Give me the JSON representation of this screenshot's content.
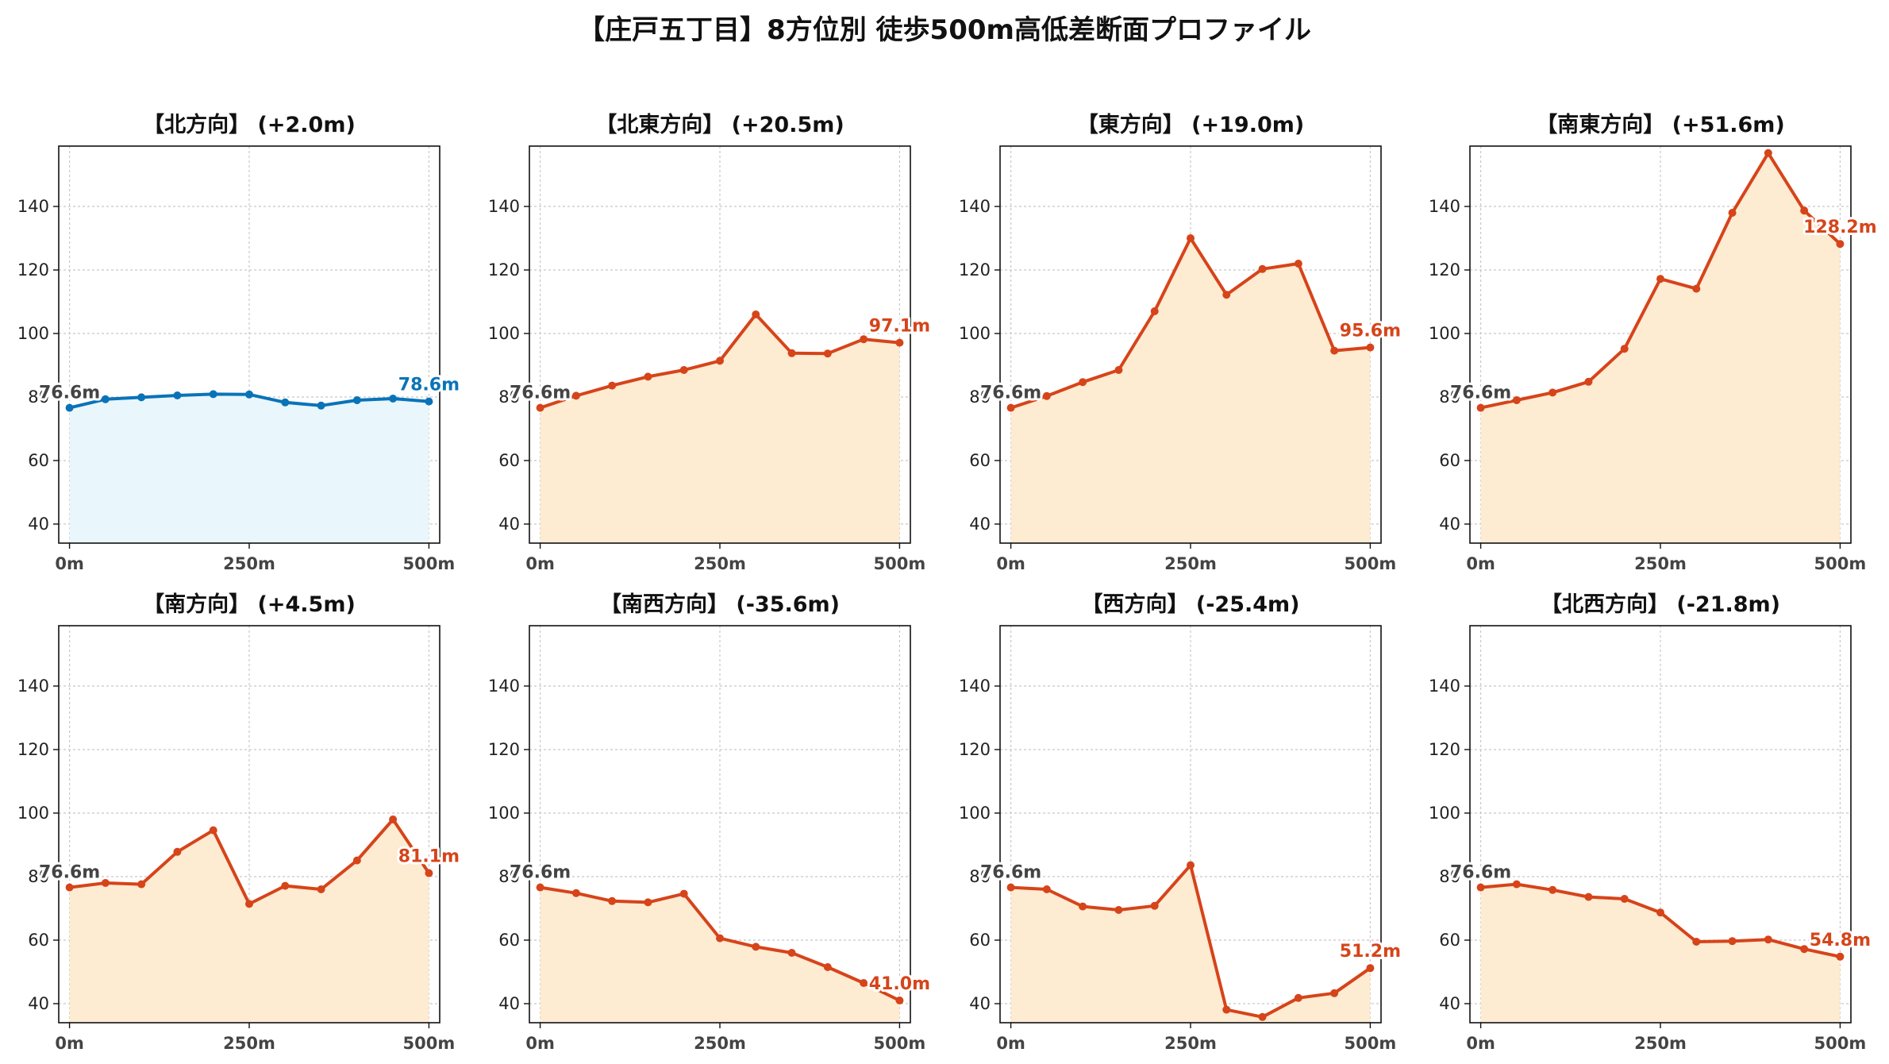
{
  "title": "【庄戸五丁目】8方位別 徒歩500m高低差断面プロファイル",
  "colors": {
    "flat_line": "#0a73b8",
    "flat_fill": "#e9f6fc",
    "slope_line": "#d6441a",
    "slope_fill": "#fdebd2",
    "start_label": "#444444"
  },
  "chart_data": [
    {
      "type": "area",
      "title": "【北方向】 (+2.0m)",
      "x": [
        0,
        50,
        100,
        150,
        200,
        250,
        300,
        350,
        400,
        450,
        500
      ],
      "values": [
        76.6,
        79.3,
        79.9,
        80.5,
        80.9,
        80.8,
        78.3,
        77.3,
        79.0,
        79.5,
        78.6
      ],
      "x_ticks": [
        "0m",
        "250m",
        "500m"
      ],
      "x_tick_values": [
        0,
        250,
        500
      ],
      "y_ticks": [
        "40",
        "60",
        "80",
        "100",
        "120",
        "140"
      ],
      "y_tick_values": [
        40,
        60,
        80,
        100,
        120,
        140
      ],
      "ylim": [
        34,
        159
      ],
      "xlim": [
        -15,
        515
      ],
      "grid": true,
      "style": "flat",
      "start_label": "76.6m",
      "end_label": "78.6m"
    },
    {
      "type": "area",
      "title": "【北東方向】 (+20.5m)",
      "x": [
        0,
        50,
        100,
        150,
        200,
        250,
        300,
        350,
        400,
        450,
        500
      ],
      "values": [
        76.6,
        80.4,
        83.6,
        86.4,
        88.5,
        91.4,
        106.0,
        93.8,
        93.7,
        98.2,
        97.1
      ],
      "x_ticks": [
        "0m",
        "250m",
        "500m"
      ],
      "x_tick_values": [
        0,
        250,
        500
      ],
      "y_ticks": [
        "40",
        "60",
        "80",
        "100",
        "120",
        "140"
      ],
      "y_tick_values": [
        40,
        60,
        80,
        100,
        120,
        140
      ],
      "ylim": [
        34,
        159
      ],
      "xlim": [
        -15,
        515
      ],
      "grid": true,
      "style": "slope",
      "start_label": "76.6m",
      "end_label": "97.1m"
    },
    {
      "type": "area",
      "title": "【東方向】 (+19.0m)",
      "x": [
        0,
        50,
        100,
        150,
        200,
        250,
        300,
        350,
        400,
        450,
        500
      ],
      "values": [
        76.6,
        80.3,
        84.7,
        88.5,
        107.0,
        130.0,
        112.2,
        120.3,
        122.0,
        94.6,
        95.6
      ],
      "x_ticks": [
        "0m",
        "250m",
        "500m"
      ],
      "x_tick_values": [
        0,
        250,
        500
      ],
      "y_ticks": [
        "40",
        "60",
        "80",
        "100",
        "120",
        "140"
      ],
      "y_tick_values": [
        40,
        60,
        80,
        100,
        120,
        140
      ],
      "ylim": [
        34,
        159
      ],
      "xlim": [
        -15,
        515
      ],
      "grid": true,
      "style": "slope",
      "start_label": "76.6m",
      "end_label": "95.6m"
    },
    {
      "type": "area",
      "title": "【南東方向】 (+51.6m)",
      "x": [
        0,
        50,
        100,
        150,
        200,
        250,
        300,
        350,
        400,
        450,
        500
      ],
      "values": [
        76.6,
        79.0,
        81.4,
        84.8,
        95.2,
        117.2,
        114.1,
        138.0,
        156.8,
        138.7,
        128.2
      ],
      "x_ticks": [
        "0m",
        "250m",
        "500m"
      ],
      "x_tick_values": [
        0,
        250,
        500
      ],
      "y_ticks": [
        "40",
        "60",
        "80",
        "100",
        "120",
        "140"
      ],
      "y_tick_values": [
        40,
        60,
        80,
        100,
        120,
        140
      ],
      "ylim": [
        34,
        159
      ],
      "xlim": [
        -15,
        515
      ],
      "grid": true,
      "style": "slope",
      "start_label": "76.6m",
      "end_label": "128.2m"
    },
    {
      "type": "area",
      "title": "【南方向】 (+4.5m)",
      "x": [
        0,
        50,
        100,
        150,
        200,
        250,
        300,
        350,
        400,
        450,
        500
      ],
      "values": [
        76.6,
        78.0,
        77.6,
        87.8,
        94.6,
        71.4,
        77.1,
        76.0,
        85.1,
        98.0,
        81.1
      ],
      "x_ticks": [
        "0m",
        "250m",
        "500m"
      ],
      "x_tick_values": [
        0,
        250,
        500
      ],
      "y_ticks": [
        "40",
        "60",
        "80",
        "100",
        "120",
        "140"
      ],
      "y_tick_values": [
        40,
        60,
        80,
        100,
        120,
        140
      ],
      "ylim": [
        34,
        159
      ],
      "xlim": [
        -15,
        515
      ],
      "grid": true,
      "style": "slope",
      "start_label": "76.6m",
      "end_label": "81.1m"
    },
    {
      "type": "area",
      "title": "【南西方向】 (-35.6m)",
      "x": [
        0,
        50,
        100,
        150,
        200,
        250,
        300,
        350,
        400,
        450,
        500
      ],
      "values": [
        76.6,
        74.8,
        72.3,
        71.9,
        74.6,
        60.6,
        57.9,
        56.0,
        51.5,
        46.5,
        41.0
      ],
      "x_ticks": [
        "0m",
        "250m",
        "500m"
      ],
      "x_tick_values": [
        0,
        250,
        500
      ],
      "y_ticks": [
        "40",
        "60",
        "80",
        "100",
        "120",
        "140"
      ],
      "y_tick_values": [
        40,
        60,
        80,
        100,
        120,
        140
      ],
      "ylim": [
        34,
        159
      ],
      "xlim": [
        -15,
        515
      ],
      "grid": true,
      "style": "slope",
      "start_label": "76.6m",
      "end_label": "41.0m"
    },
    {
      "type": "area",
      "title": "【西方向】 (-25.4m)",
      "x": [
        0,
        50,
        100,
        150,
        200,
        250,
        300,
        350,
        400,
        450,
        500
      ],
      "values": [
        76.6,
        76.0,
        70.6,
        69.5,
        70.8,
        83.6,
        38.1,
        35.8,
        41.8,
        43.3,
        51.2
      ],
      "x_ticks": [
        "0m",
        "250m",
        "500m"
      ],
      "x_tick_values": [
        0,
        250,
        500
      ],
      "y_ticks": [
        "40",
        "60",
        "80",
        "100",
        "120",
        "140"
      ],
      "y_tick_values": [
        40,
        60,
        80,
        100,
        120,
        140
      ],
      "ylim": [
        34,
        159
      ],
      "xlim": [
        -15,
        515
      ],
      "grid": true,
      "style": "slope",
      "start_label": "76.6m",
      "end_label": "51.2m"
    },
    {
      "type": "area",
      "title": "【北西方向】 (-21.8m)",
      "x": [
        0,
        50,
        100,
        150,
        200,
        250,
        300,
        350,
        400,
        450,
        500
      ],
      "values": [
        76.6,
        77.6,
        75.8,
        73.6,
        73.0,
        68.7,
        59.5,
        59.7,
        60.2,
        57.2,
        54.8
      ],
      "x_ticks": [
        "0m",
        "250m",
        "500m"
      ],
      "x_tick_values": [
        0,
        250,
        500
      ],
      "y_ticks": [
        "40",
        "60",
        "80",
        "100",
        "120",
        "140"
      ],
      "y_tick_values": [
        40,
        60,
        80,
        100,
        120,
        140
      ],
      "ylim": [
        34,
        159
      ],
      "xlim": [
        -15,
        515
      ],
      "grid": true,
      "style": "slope",
      "start_label": "76.6m",
      "end_label": "54.8m"
    }
  ]
}
